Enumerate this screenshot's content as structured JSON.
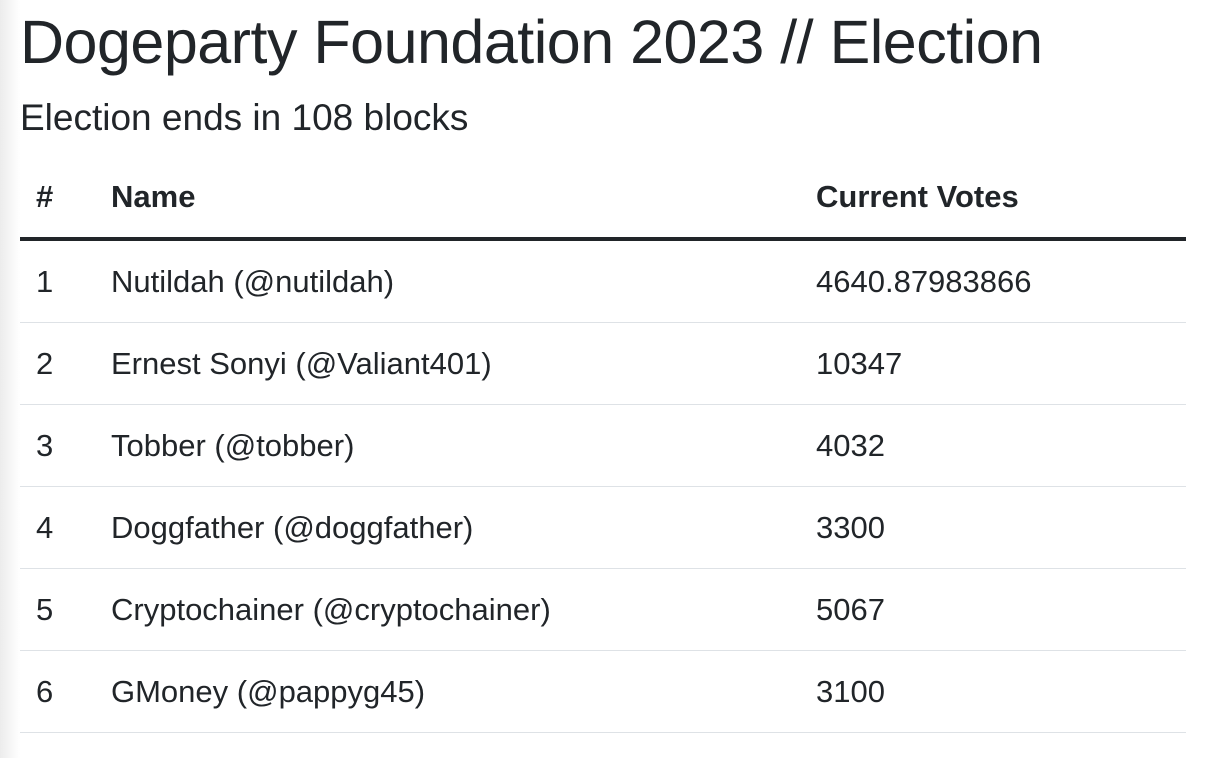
{
  "page": {
    "title": "Dogeparty Foundation 2023 // Election",
    "subtitle": "Election ends in 108 blocks"
  },
  "table": {
    "headers": {
      "num": "#",
      "name": "Name",
      "votes": "Current Votes"
    },
    "rows": [
      {
        "num": "1",
        "name": "Nutildah (@nutildah)",
        "votes": "4640.87983866"
      },
      {
        "num": "2",
        "name": "Ernest Sonyi (@Valiant401)",
        "votes": "10347"
      },
      {
        "num": "3",
        "name": "Tobber (@tobber)",
        "votes": "4032"
      },
      {
        "num": "4",
        "name": "Doggfather (@doggfather)",
        "votes": "3300"
      },
      {
        "num": "5",
        "name": "Cryptochainer (@cryptochainer)",
        "votes": "5067"
      },
      {
        "num": "6",
        "name": "GMoney (@pappyg45)",
        "votes": "3100"
      }
    ]
  }
}
